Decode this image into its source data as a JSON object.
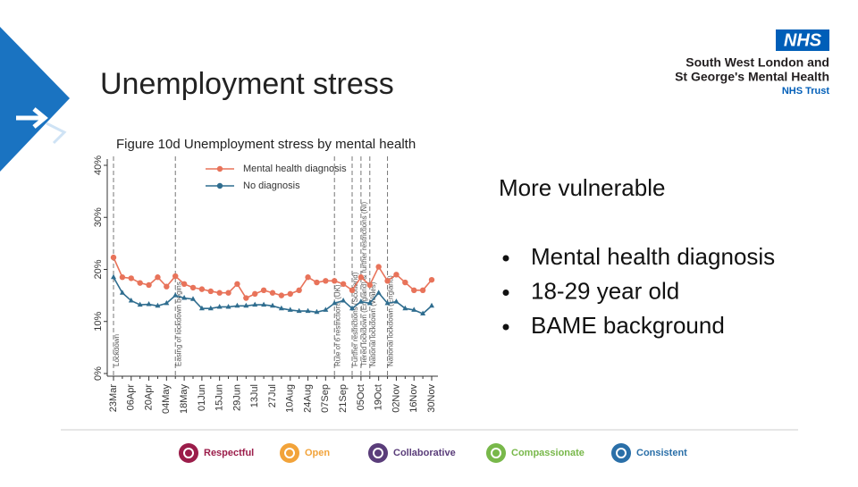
{
  "slide": {
    "title": "Unemployment stress",
    "logo": {
      "badge": "NHS",
      "line1": "South West London and",
      "line2": "St George's Mental Health",
      "line3": "NHS Trust"
    },
    "heading": "More vulnerable",
    "bullets": [
      "Mental health diagnosis",
      "18-29 year old",
      "BAME background"
    ],
    "values": [
      "Respectful",
      "Open",
      "Collaborative",
      "Compassionate",
      "Consistent"
    ]
  },
  "chart_data": {
    "type": "line",
    "title": "Figure 10d Unemployment stress by mental health",
    "categories": [
      "23Mar",
      null,
      "06Apr",
      null,
      "20Apr",
      null,
      "04May",
      null,
      "18May",
      null,
      "01Jun",
      null,
      "15Jun",
      null,
      "29Jun",
      null,
      "13Jul",
      null,
      "27Jul",
      null,
      "10Aug",
      null,
      "24Aug",
      null,
      "07Sep",
      null,
      "21Sep",
      null,
      "05Oct",
      null,
      "19Oct",
      null,
      "02Nov",
      null,
      "16Nov",
      null,
      "30Nov"
    ],
    "series": [
      {
        "name": "Mental health diagnosis",
        "color": "#e8735a",
        "values": [
          22.3,
          18.5,
          18.3,
          17.4,
          17,
          18.5,
          16.7,
          18.7,
          17.2,
          16.5,
          16.2,
          15.8,
          15.5,
          15.5,
          17.2,
          14.5,
          15.3,
          16,
          15.5,
          15,
          15.3,
          16,
          18.5,
          17.5,
          17.8,
          17.8,
          17.2,
          16,
          18.5,
          17,
          20.5,
          17.8,
          19,
          17.5,
          16,
          16,
          18
        ]
      },
      {
        "name": "No diagnosis",
        "color": "#2f6d8f",
        "values": [
          18.5,
          15.5,
          14,
          13.2,
          13.3,
          13,
          13.5,
          15,
          14.5,
          14.3,
          12.5,
          12.5,
          12.8,
          12.8,
          13,
          13,
          13.2,
          13.2,
          13,
          12.5,
          12.2,
          12,
          12,
          11.8,
          12.2,
          13.5,
          14,
          12.5,
          13.8,
          13.5,
          15.5,
          13.5,
          13.8,
          12.5,
          12.2,
          11.5,
          13
        ]
      }
    ],
    "ylim": [
      0,
      40
    ],
    "yticks": [
      {
        "value": 0,
        "label": "0%"
      },
      {
        "value": 10,
        "label": "10%"
      },
      {
        "value": 20,
        "label": "20%"
      },
      {
        "value": 30,
        "label": "30%"
      },
      {
        "value": 40,
        "label": "40%"
      }
    ],
    "events": [
      {
        "at": 0,
        "label": "Lockdown"
      },
      {
        "at": 7,
        "label": "Easing of lockdown begins"
      },
      {
        "at": 25,
        "label": "Rule of 6 restrictions (UK)"
      },
      {
        "at": 27,
        "label": "Further restrictions (Scotland)"
      },
      {
        "at": 28,
        "label": "Tiered lockdown (England) & further restrictions (NI)"
      },
      {
        "at": 29,
        "label": "National lockdown (Wales)"
      },
      {
        "at": 31,
        "label": "National lockdown (England)"
      }
    ],
    "grid": false,
    "legend": "top-left"
  }
}
